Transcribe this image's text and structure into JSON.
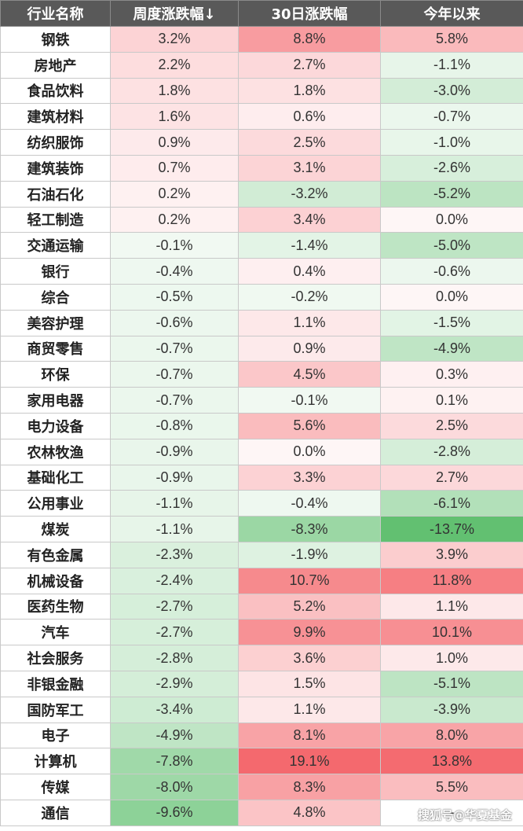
{
  "chart_data": {
    "type": "table",
    "columns": [
      "行业名称",
      "周度涨跌幅↓",
      "30日涨跌幅",
      "今年以来"
    ],
    "rows": [
      [
        "钢铁",
        "3.2%",
        "8.8%",
        "5.8%"
      ],
      [
        "房地产",
        "2.2%",
        "2.7%",
        "-1.1%"
      ],
      [
        "食品饮料",
        "1.8%",
        "1.8%",
        "-3.0%"
      ],
      [
        "建筑材料",
        "1.6%",
        "0.6%",
        "-0.7%"
      ],
      [
        "纺织服饰",
        "0.9%",
        "2.5%",
        "-1.0%"
      ],
      [
        "建筑装饰",
        "0.7%",
        "3.1%",
        "-2.6%"
      ],
      [
        "石油石化",
        "0.2%",
        "-3.2%",
        "-5.2%"
      ],
      [
        "轻工制造",
        "0.2%",
        "3.4%",
        "0.0%"
      ],
      [
        "交通运输",
        "-0.1%",
        "-1.4%",
        "-5.0%"
      ],
      [
        "银行",
        "-0.4%",
        "0.4%",
        "-0.6%"
      ],
      [
        "综合",
        "-0.5%",
        "-0.2%",
        "0.0%"
      ],
      [
        "美容护理",
        "-0.6%",
        "1.1%",
        "-1.5%"
      ],
      [
        "商贸零售",
        "-0.7%",
        "0.9%",
        "-4.9%"
      ],
      [
        "环保",
        "-0.7%",
        "4.5%",
        "0.3%"
      ],
      [
        "家用电器",
        "-0.7%",
        "-0.1%",
        "0.1%"
      ],
      [
        "电力设备",
        "-0.8%",
        "5.6%",
        "2.5%"
      ],
      [
        "农林牧渔",
        "-0.9%",
        "0.0%",
        "-2.8%"
      ],
      [
        "基础化工",
        "-0.9%",
        "3.3%",
        "2.7%"
      ],
      [
        "公用事业",
        "-1.1%",
        "-0.4%",
        "-6.1%"
      ],
      [
        "煤炭",
        "-1.1%",
        "-8.3%",
        "-13.7%"
      ],
      [
        "有色金属",
        "-2.3%",
        "-1.9%",
        "3.9%"
      ],
      [
        "机械设备",
        "-2.4%",
        "10.7%",
        "11.8%"
      ],
      [
        "医药生物",
        "-2.7%",
        "5.2%",
        "1.1%"
      ],
      [
        "汽车",
        "-2.7%",
        "9.9%",
        "10.1%"
      ],
      [
        "社会服务",
        "-2.8%",
        "3.6%",
        "1.0%"
      ],
      [
        "非银金融",
        "-2.9%",
        "1.5%",
        "-5.1%"
      ],
      [
        "国防军工",
        "-3.4%",
        "1.1%",
        "-3.9%"
      ],
      [
        "电子",
        "-4.9%",
        "8.1%",
        "8.0%"
      ],
      [
        "计算机",
        "-7.8%",
        "19.1%",
        "13.8%"
      ],
      [
        "传媒",
        "-8.0%",
        "8.3%",
        "5.5%"
      ],
      [
        "通信",
        "-9.6%",
        "4.8%",
        "-"
      ]
    ],
    "heatmap": true,
    "colors": {
      "positive": "#f4696e",
      "negative": "#5fbf6e",
      "header_bg": "#595959",
      "header_text": "#ffffff"
    }
  },
  "watermark": "搜狐号@华夏基金"
}
